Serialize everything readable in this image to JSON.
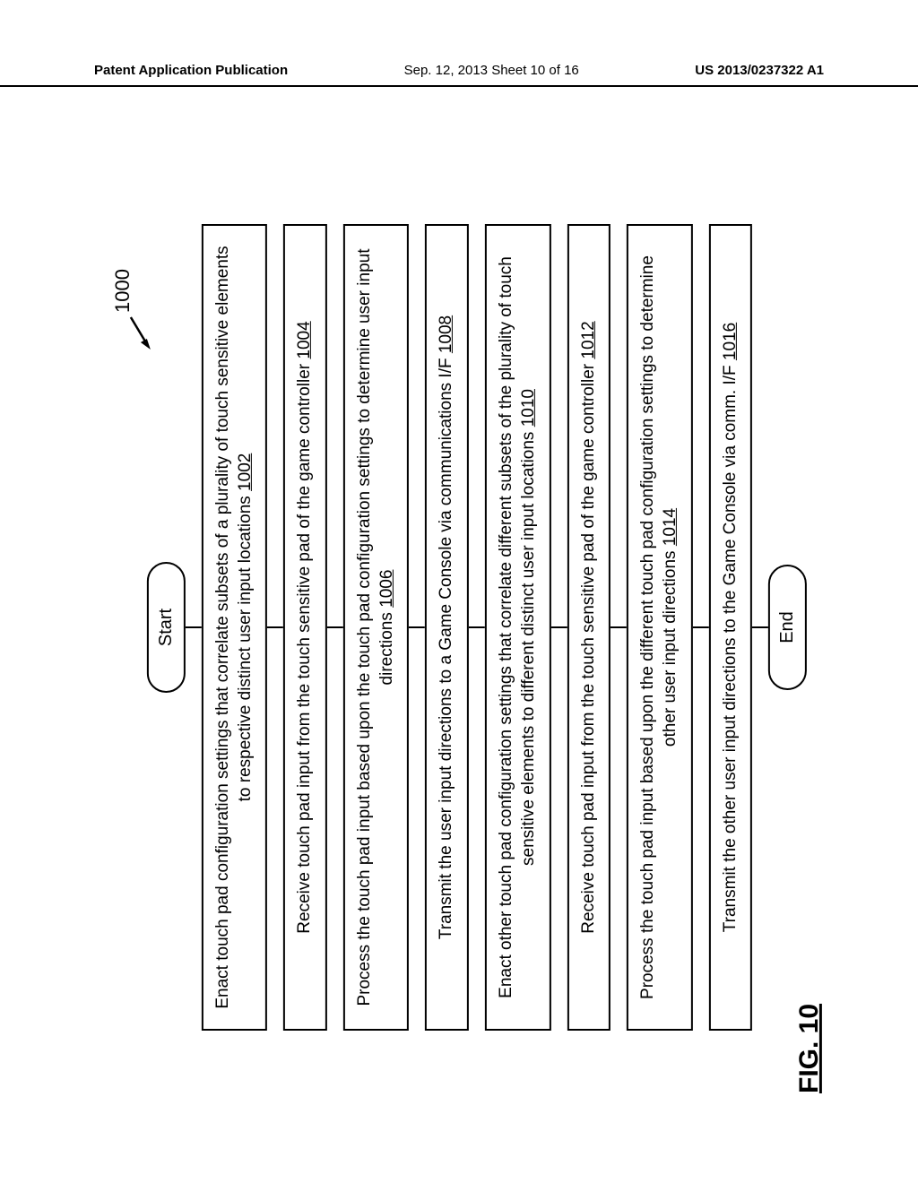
{
  "header": {
    "left": "Patent Application Publication",
    "center": "Sep. 12, 2013  Sheet 10 of 16",
    "right": "US 2013/0237322 A1"
  },
  "flowchart": {
    "type": "flowchart",
    "reference_number": "1000",
    "start_label": "Start",
    "end_label": "End",
    "figure_label": "FIG. 10",
    "background_color": "#ffffff",
    "border_color": "#000000",
    "border_width": 2.5,
    "font_family": "Arial",
    "step_fontsize": 19,
    "terminator_fontsize": 20,
    "ref_fontsize": 22,
    "fig_fontsize": 30,
    "flow_width": 900,
    "steps": [
      {
        "text": "Enact touch pad configuration settings that correlate subsets of a plurality of touch sensitive elements to respective distinct user input locations",
        "ref": "1002"
      },
      {
        "text": "Receive touch pad input from the touch sensitive pad of the game controller",
        "ref": "1004"
      },
      {
        "text": "Process the touch pad input based upon the touch pad configuration settings to determine user input directions",
        "ref": "1006"
      },
      {
        "text": "Transmit the user input directions to a Game Console via communications I/F",
        "ref": "1008"
      },
      {
        "text": "Enact other touch pad configuration settings that correlate different subsets of the plurality of touch sensitive elements to different distinct user input locations",
        "ref": "1010"
      },
      {
        "text": "Receive touch pad input from the touch sensitive pad of the game controller",
        "ref": "1012"
      },
      {
        "text": "Process the touch pad input based upon the different touch pad configuration settings to determine other user input directions",
        "ref": "1014"
      },
      {
        "text": "Transmit the other user input directions to the Game Console via comm. I/F",
        "ref": "1016"
      }
    ]
  }
}
